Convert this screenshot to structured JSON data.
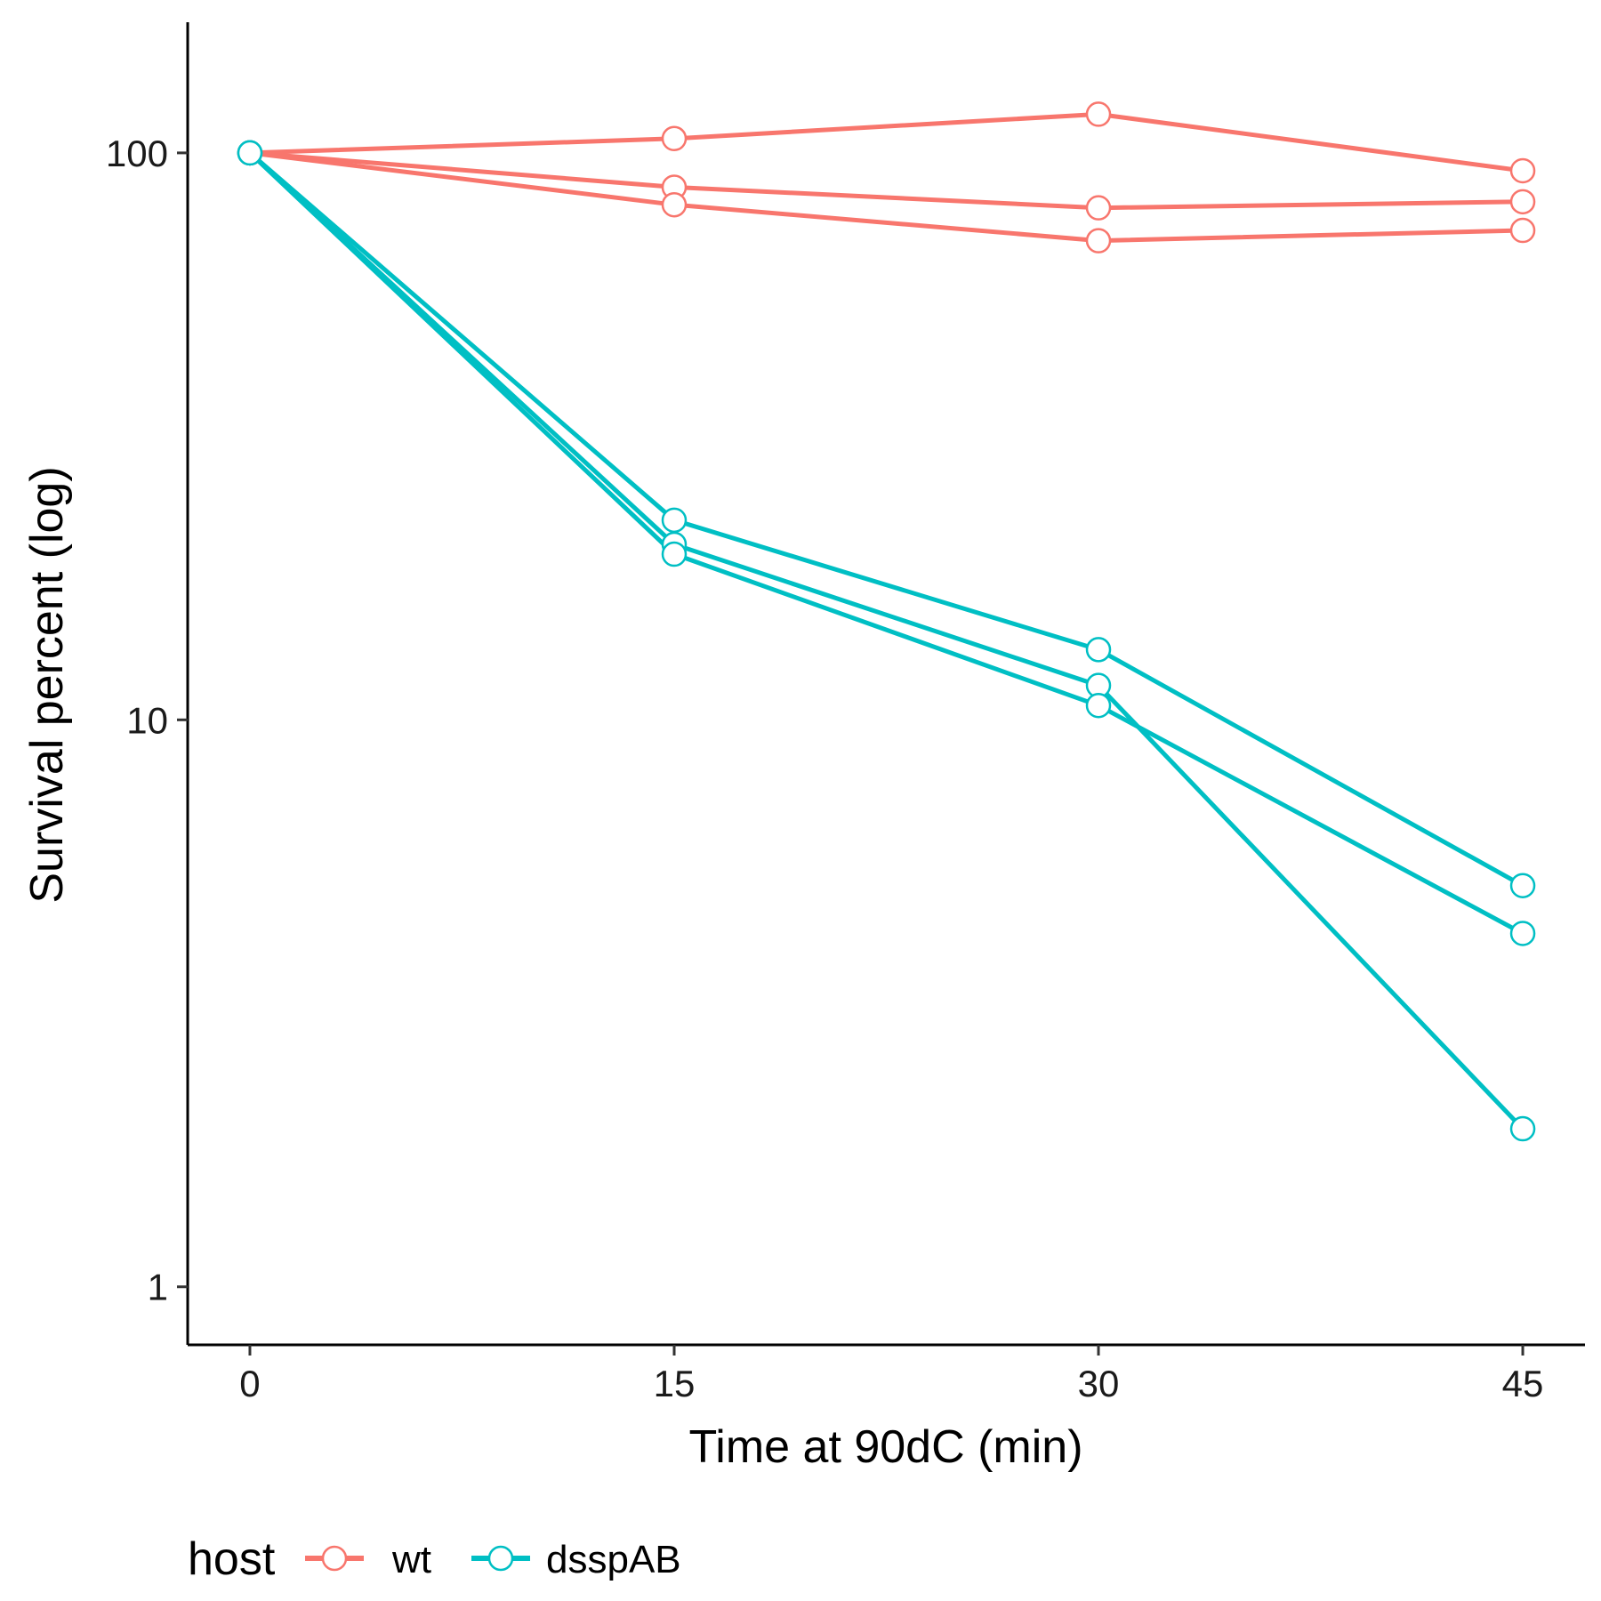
{
  "chart_data": {
    "type": "line",
    "title": "",
    "xlabel": "Time at 90dC (min)",
    "ylabel": "Survival percent (log)",
    "x_ticks": [
      0,
      15,
      30,
      45
    ],
    "x_tick_labels": [
      "0",
      "15",
      "30",
      "45"
    ],
    "xlim": [
      -2.2,
      47.2
    ],
    "y_scale": "log",
    "y_ticks": [
      1,
      10,
      100
    ],
    "y_tick_labels": [
      "1",
      "10",
      "100"
    ],
    "ylim": [
      0.79,
      170
    ],
    "grid": false,
    "legend": {
      "title": "host",
      "position": "bottom-left",
      "entries": [
        {
          "label": "wt",
          "color": "#F8766D"
        },
        {
          "label": "dsspAB",
          "color": "#00BFC4"
        }
      ]
    },
    "x": [
      0,
      15,
      30,
      45
    ],
    "series": [
      {
        "group": "wt",
        "color": "#F8766D",
        "values": [
          100,
          106,
          117,
          93
        ]
      },
      {
        "group": "wt",
        "color": "#F8766D",
        "values": [
          100,
          87,
          80,
          82
        ]
      },
      {
        "group": "wt",
        "color": "#F8766D",
        "values": [
          100,
          81,
          70,
          73
        ]
      },
      {
        "group": "dsspAB",
        "color": "#00BFC4",
        "values": [
          100,
          22.5,
          13.3,
          5.1
        ]
      },
      {
        "group": "dsspAB",
        "color": "#00BFC4",
        "values": [
          100,
          20.4,
          11.5,
          1.9
        ]
      },
      {
        "group": "dsspAB",
        "color": "#00BFC4",
        "values": [
          100,
          19.6,
          10.6,
          4.2
        ]
      }
    ]
  }
}
